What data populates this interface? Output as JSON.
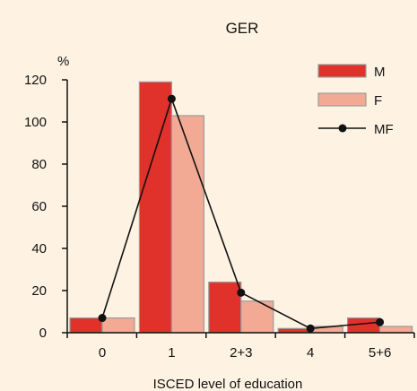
{
  "chart_data": {
    "type": "bar",
    "title": "GER",
    "ylabel": "%",
    "xlabel": "ISCED level of education",
    "categories": [
      "0",
      "1",
      "2+3",
      "4",
      "5+6"
    ],
    "ylim": [
      0,
      120
    ],
    "yticks": [
      0,
      20,
      40,
      60,
      80,
      100,
      120
    ],
    "series": [
      {
        "name": "M",
        "type": "bar",
        "values": [
          7,
          119,
          24,
          2,
          7
        ],
        "color": "#e0312a"
      },
      {
        "name": "F",
        "type": "bar",
        "values": [
          7,
          103,
          15,
          3,
          3
        ],
        "color": "#f2aa94"
      },
      {
        "name": "MF",
        "type": "line",
        "values": [
          7,
          111,
          19,
          2,
          5
        ],
        "color": "#111111"
      }
    ],
    "legend": "top-right",
    "grid": false
  },
  "colors": {
    "background": "#fef3e2",
    "axis": "#111111",
    "bar_outline": "#9b9b9b"
  }
}
